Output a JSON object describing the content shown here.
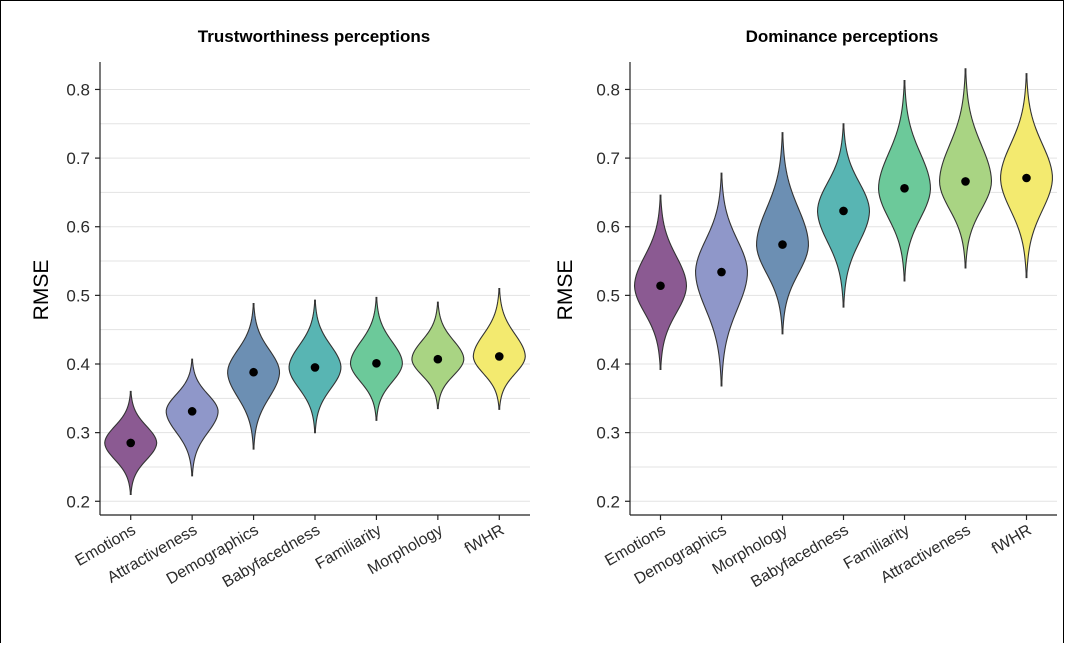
{
  "chart_data": [
    {
      "type": "violin",
      "title": "Trustworthiness perceptions",
      "ylabel": "RMSE",
      "ylim": [
        0.18,
        0.84
      ],
      "yticks": [
        "0.2",
        "0.3",
        "0.4",
        "0.5",
        "0.6",
        "0.7",
        "0.8"
      ],
      "categories": [
        "Emotions",
        "Attractiveness",
        "Demographics",
        "Babyfacedness",
        "Familiarity",
        "Morphology",
        "fWHR"
      ],
      "means": [
        0.285,
        0.331,
        0.388,
        0.395,
        0.401,
        0.407,
        0.411
      ],
      "mins": [
        0.21,
        0.237,
        0.276,
        0.3,
        0.318,
        0.335,
        0.334
      ],
      "maxs": [
        0.36,
        0.407,
        0.488,
        0.493,
        0.497,
        0.49,
        0.51
      ],
      "colors": [
        "#8b5a92",
        "#8f97c9",
        "#6c8fb3",
        "#58b5b3",
        "#6cc99a",
        "#a9d483",
        "#f3ea6f"
      ]
    },
    {
      "type": "violin",
      "title": "Dominance perceptions",
      "ylabel": "RMSE",
      "ylim": [
        0.18,
        0.84
      ],
      "yticks": [
        "0.2",
        "0.3",
        "0.4",
        "0.5",
        "0.6",
        "0.7",
        "0.8"
      ],
      "categories": [
        "Emotions",
        "Demographics",
        "Morphology",
        "Babyfacedness",
        "Familiarity",
        "Attractiveness",
        "fWHR"
      ],
      "means": [
        0.514,
        0.534,
        0.574,
        0.623,
        0.656,
        0.666,
        0.671
      ],
      "mins": [
        0.392,
        0.368,
        0.444,
        0.483,
        0.521,
        0.54,
        0.526
      ],
      "maxs": [
        0.646,
        0.678,
        0.737,
        0.75,
        0.813,
        0.83,
        0.823
      ],
      "colors": [
        "#8b5a92",
        "#8f97c9",
        "#6c8fb3",
        "#58b5b3",
        "#6cc99a",
        "#a9d483",
        "#f3ea6f"
      ]
    }
  ]
}
